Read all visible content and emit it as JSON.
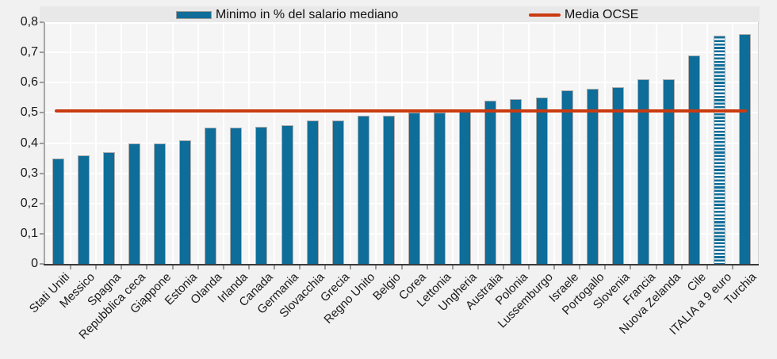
{
  "legend": {
    "bar_label": "Minimo in % del salario mediano",
    "line_label": "Media OCSE"
  },
  "chart_data": {
    "type": "bar",
    "title": "",
    "xlabel": "",
    "ylabel": "",
    "categories": [
      "Stati Uniti",
      "Messico",
      "Spagna",
      "Repubblica ceca",
      "Giappone",
      "Estonia",
      "Olanda",
      "Irlanda",
      "Canada",
      "Germania",
      "Slovacchia",
      "Grecia",
      "Regno Unito",
      "Belgio",
      "Corea",
      "Lettonia",
      "Ungheria",
      "Australia",
      "Polonia",
      "Lussemburgo",
      "Israele",
      "Portogallo",
      "Slovenia",
      "Francia",
      "Nuova Zelanda",
      "Cile",
      "ITALIA a 9 euro",
      "Turchia"
    ],
    "series": [
      {
        "name": "Minimo in % del salario mediano",
        "values": [
          0.35,
          0.36,
          0.37,
          0.4,
          0.4,
          0.41,
          0.45,
          0.45,
          0.455,
          0.46,
          0.475,
          0.475,
          0.49,
          0.49,
          0.5,
          0.5,
          0.51,
          0.54,
          0.545,
          0.55,
          0.575,
          0.58,
          0.585,
          0.61,
          0.61,
          0.69,
          0.755,
          0.76
        ]
      }
    ],
    "reference_line": {
      "label": "Media OCSE",
      "value": 0.505
    },
    "hatched_category": "ITALIA a 9 euro",
    "ylim": [
      0,
      0.8
    ],
    "ytick_step": 0.1,
    "ytick_labels": [
      "0",
      "0,1",
      "0,2",
      "0,3",
      "0,4",
      "0,5",
      "0,6",
      "0,7",
      "0,8"
    ],
    "grid": true,
    "legend_position": "top",
    "bar_color": "#0e6d99",
    "line_color": "#ca3a10"
  }
}
